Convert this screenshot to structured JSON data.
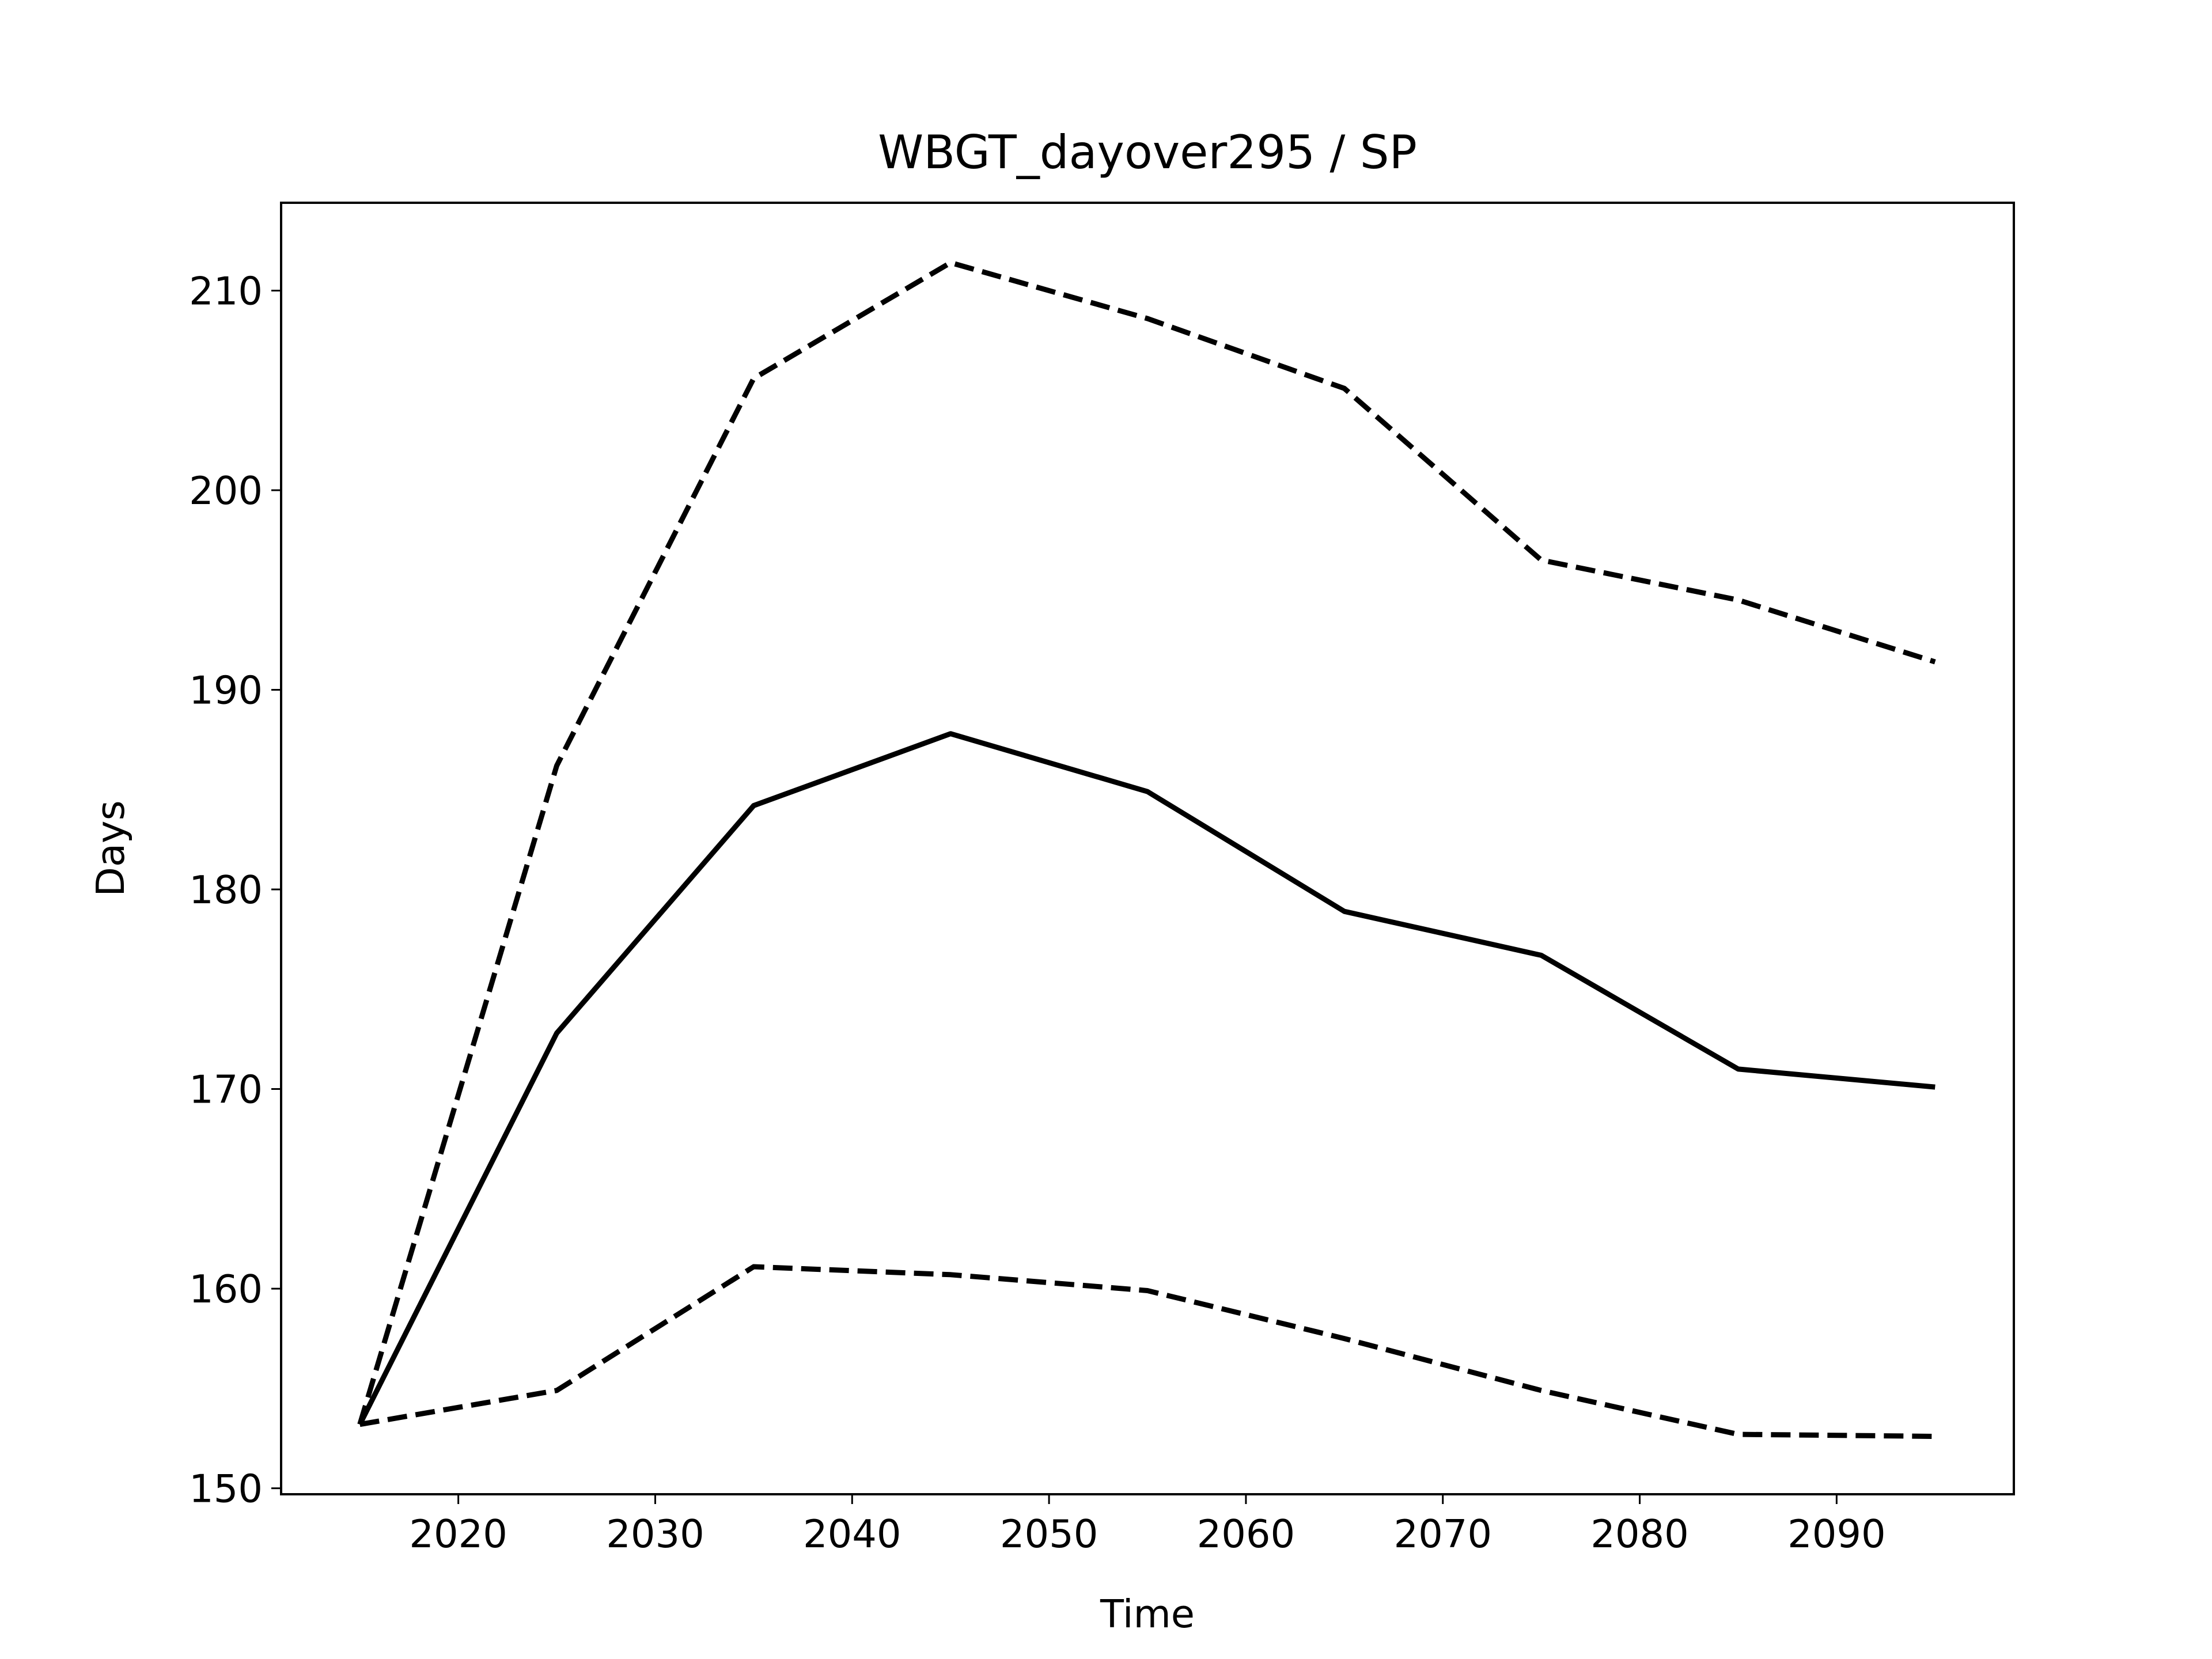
{
  "chart_data": {
    "type": "line",
    "title": "WBGT_dayover295 / SP",
    "xlabel": "Time",
    "ylabel": "Days",
    "xlim": [
      2011,
      2099
    ],
    "ylim": [
      149.7,
      214.4
    ],
    "xticks": [
      2020,
      2030,
      2040,
      2050,
      2060,
      2070,
      2080,
      2090
    ],
    "yticks": [
      150,
      160,
      170,
      180,
      190,
      200,
      210
    ],
    "grid": false,
    "legend": "none",
    "x": [
      2015,
      2025,
      2035,
      2045,
      2055,
      2065,
      2075,
      2085,
      2095
    ],
    "series": [
      {
        "style": "solid",
        "color": "#000000",
        "values": [
          153.2,
          172.8,
          184.2,
          187.8,
          184.9,
          178.9,
          176.7,
          171.0,
          170.1
        ]
      },
      {
        "style": "dashed",
        "color": "#000000",
        "values": [
          153.2,
          186.2,
          205.6,
          211.4,
          208.6,
          205.1,
          196.5,
          194.5,
          191.4
        ]
      },
      {
        "style": "dashed",
        "color": "#000000",
        "values": [
          153.2,
          154.9,
          161.1,
          160.7,
          159.9,
          157.5,
          154.9,
          152.7,
          152.6
        ]
      }
    ]
  }
}
